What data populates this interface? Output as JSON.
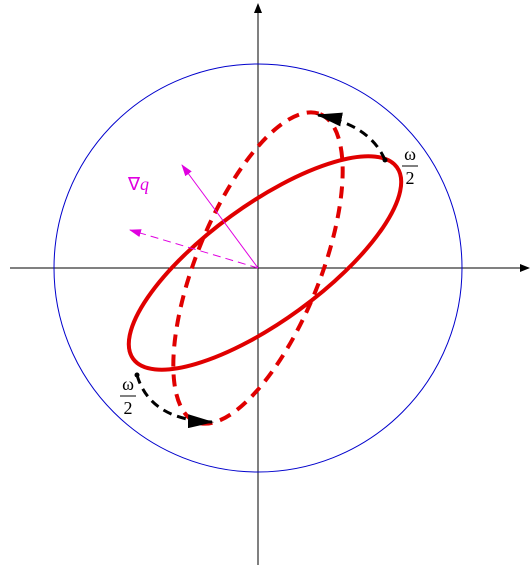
{
  "gradient_label": {
    "symbol": "∇",
    "variable": "q"
  },
  "omega_labels": [
    {
      "numerator": "ω",
      "denominator": "2"
    },
    {
      "numerator": "ω",
      "denominator": "2"
    }
  ]
}
